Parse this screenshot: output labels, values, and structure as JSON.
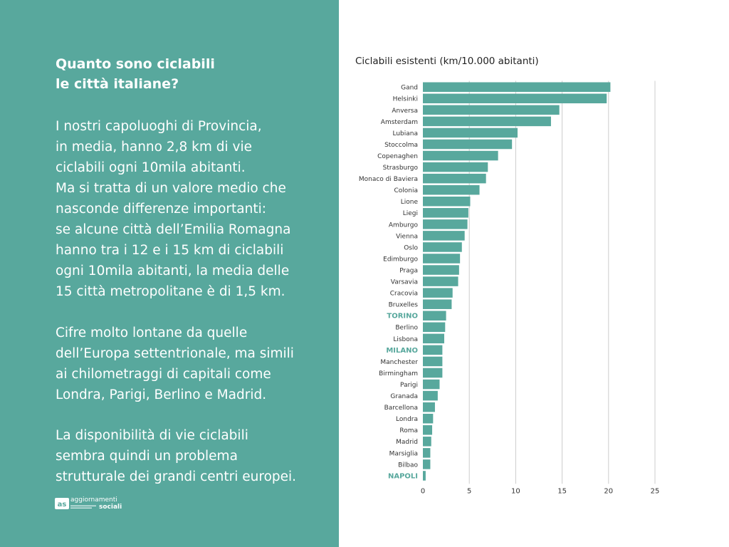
{
  "left_panel": {
    "title_line1": "Quanto sono ciclabili",
    "title_line2": "le città italiane?",
    "paragraph1": [
      "I nostri capoluoghi di Provincia,",
      "in media, hanno 2,8 km di vie",
      "ciclabili ogni 10mila abitanti.",
      "Ma si tratta di un valore medio che",
      "nasconde differenze importanti:",
      "se alcune città dell’Emilia Romagna",
      "hanno tra i 12 e i 15 km di ciclabili",
      "ogni 10mila abitanti, la media delle",
      "15 città metropolitane è di 1,5 km."
    ],
    "paragraph2": [
      "Cifre molto lontane da quelle",
      "dell’Europa settentrionale, ma simili",
      "ai chilometraggi di capitali come",
      "Londra, Parigi, Berlino e Madrid."
    ],
    "paragraph3": [
      "La disponibilità di vie ciclabili",
      "sembra quindi un problema",
      "strutturale dei grandi centri europei."
    ],
    "logo_line1": "aggiornamenti",
    "logo_line2": "sociali"
  },
  "colors": {
    "panel": "#58a89d",
    "bar": "#58a89d",
    "highlight_label": "#58a89d",
    "label": "#333333",
    "grid": "#cccccc"
  },
  "chart_data": {
    "type": "bar",
    "orientation": "horizontal",
    "title": "Ciclabili esistenti (km/10.000 abitanti)",
    "categories": [
      "Gand",
      "Helsinki",
      "Anversa",
      "Amsterdam",
      "Lubiana",
      "Stoccolma",
      "Copenaghen",
      "Strasburgo",
      "Monaco di Baviera",
      "Colonia",
      "Lione",
      "Liegi",
      "Amburgo",
      "Vienna",
      "Oslo",
      "Edimburgo",
      "Praga",
      "Varsavia",
      "Cracovia",
      "Bruxelles",
      "TORINO",
      "Berlino",
      "Lisbona",
      "MILANO",
      "Manchester",
      "Birmingham",
      "Parigi",
      "Granada",
      "Barcellona",
      "Londra",
      "Roma",
      "Madrid",
      "Marsiglia",
      "Bilbao",
      "NAPOLI"
    ],
    "values": [
      20.2,
      19.8,
      14.7,
      13.8,
      10.2,
      9.6,
      8.1,
      7.0,
      6.8,
      6.1,
      5.1,
      4.9,
      4.8,
      4.5,
      4.2,
      4.0,
      3.9,
      3.8,
      3.2,
      3.1,
      2.5,
      2.4,
      2.3,
      2.1,
      2.1,
      2.1,
      1.8,
      1.6,
      1.3,
      1.1,
      1.0,
      0.9,
      0.8,
      0.8,
      0.3
    ],
    "highlighted": [
      "TORINO",
      "MILANO",
      "NAPOLI"
    ],
    "xlim": [
      0,
      25
    ],
    "xticks": [
      0,
      5,
      10,
      15,
      20,
      25
    ],
    "grid": "vertical lines at x ticks",
    "xlabel": "",
    "ylabel": ""
  }
}
